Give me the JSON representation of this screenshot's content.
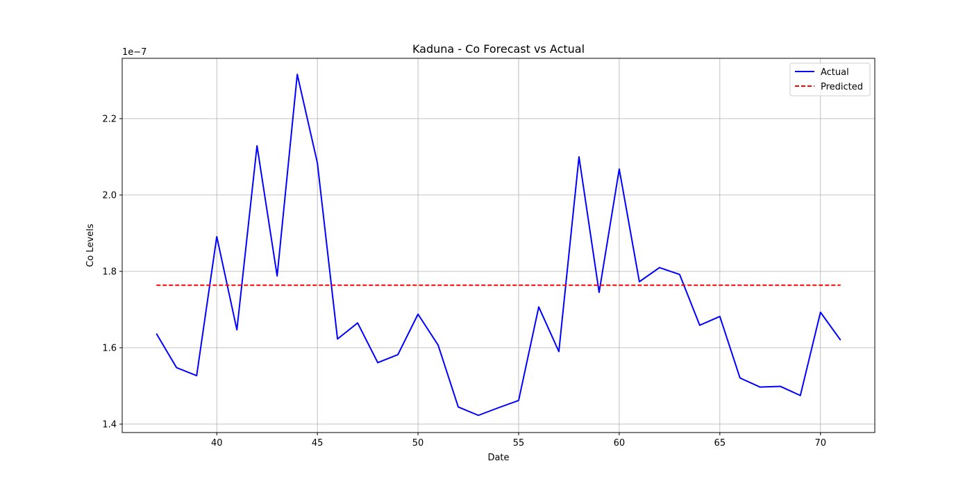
{
  "chart_data": {
    "type": "line",
    "title": "Kaduna - Co Forecast vs Actual",
    "xlabel": "Date",
    "ylabel": "Co Levels",
    "offset_label": "1e−7",
    "xlim": [
      35.3,
      72.7
    ],
    "ylim": [
      1.378,
      2.358
    ],
    "xticks": [
      40,
      45,
      50,
      55,
      60,
      65,
      70
    ],
    "yticks": [
      1.4,
      1.6,
      1.8,
      2.0,
      2.2
    ],
    "ytick_labels": [
      "1.4",
      "1.6",
      "1.8",
      "2.0",
      "2.2"
    ],
    "grid": true,
    "legend_position": "top-right",
    "x": [
      37,
      38,
      39,
      40,
      41,
      42,
      43,
      44,
      45,
      46,
      47,
      48,
      49,
      50,
      51,
      52,
      53,
      54,
      55,
      56,
      57,
      58,
      59,
      60,
      61,
      62,
      63,
      64,
      65,
      66,
      67,
      68,
      69,
      70,
      71
    ],
    "series": [
      {
        "name": "Actual",
        "color": "#0000ff",
        "style": "solid",
        "values": [
          1.637,
          1.548,
          1.527,
          1.891,
          1.647,
          2.129,
          1.788,
          2.316,
          2.084,
          1.623,
          1.665,
          1.561,
          1.582,
          1.688,
          1.607,
          1.445,
          1.423,
          1.443,
          1.462,
          1.707,
          1.59,
          2.1,
          1.745,
          2.068,
          1.773,
          1.81,
          1.792,
          1.659,
          1.682,
          1.521,
          1.497,
          1.499,
          1.475,
          1.693,
          1.62
        ]
      },
      {
        "name": "Predicted",
        "color": "#ff0000",
        "style": "dashed",
        "values": [
          1.764,
          1.764,
          1.764,
          1.764,
          1.764,
          1.764,
          1.764,
          1.764,
          1.764,
          1.764,
          1.764,
          1.764,
          1.764,
          1.764,
          1.764,
          1.764,
          1.764,
          1.764,
          1.764,
          1.764,
          1.764,
          1.764,
          1.764,
          1.764,
          1.764,
          1.764,
          1.764,
          1.764,
          1.764,
          1.764,
          1.764,
          1.764,
          1.764,
          1.764,
          1.764
        ]
      }
    ]
  }
}
